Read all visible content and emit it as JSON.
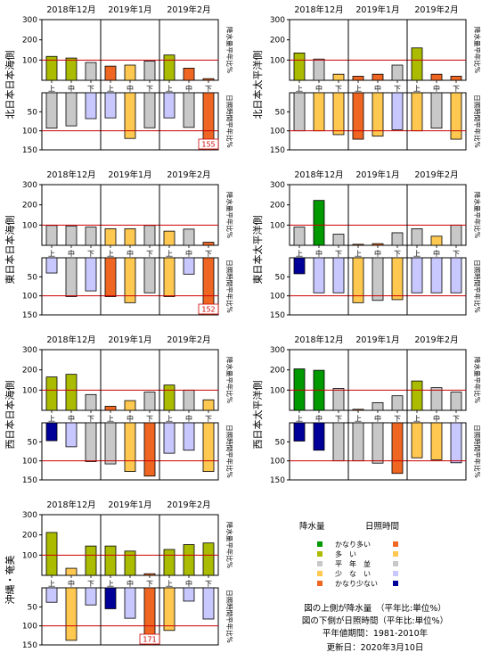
{
  "month_labels": [
    "2018年12月",
    "2019年1月",
    "2019年2月"
  ],
  "dekad_labels": [
    "上",
    "中",
    "下"
  ],
  "precip_side_label": "降水量平年比%",
  "sun_side_label": "日照時間平年比%",
  "precip_ticks": [
    "300",
    "200",
    "100"
  ],
  "sun_ticks": [
    "50",
    "100",
    "150"
  ],
  "colors": {
    "precip": {
      "much_above": "#009900",
      "above": "#aabb00",
      "normal": "#c8c8c8",
      "below": "#ffc850",
      "much_below": "#ee6622"
    },
    "sun": {
      "much_above": "#ee6622",
      "above": "#ffc850",
      "normal": "#c8c8c8",
      "below": "#c8c8ff",
      "much_below": "#000099"
    },
    "reference_line": "#cc0000"
  },
  "chart_data": [
    {
      "type": "bar",
      "region": "北日本日本海側",
      "categories": [
        "12月上",
        "12月中",
        "12月下",
        "1月上",
        "1月中",
        "1月下",
        "2月上",
        "2月中",
        "2月下"
      ],
      "precip": [
        118,
        110,
        88,
        70,
        75,
        95,
        125,
        60,
        8
      ],
      "precip_class": [
        "above",
        "above",
        "normal",
        "much_below",
        "below",
        "normal",
        "above",
        "much_below",
        "much_below"
      ],
      "sunshine": [
        93,
        87,
        68,
        66,
        120,
        92,
        66,
        91,
        155
      ],
      "sunshine_class": [
        "normal",
        "normal",
        "below",
        "below",
        "above",
        "normal",
        "below",
        "normal",
        "much_above"
      ],
      "sun_label": "155",
      "ylim_precip": [
        0,
        300
      ],
      "ylim_sun": [
        0,
        150
      ]
    },
    {
      "type": "bar",
      "region": "北日本太平洋側",
      "categories": [
        "12月上",
        "12月中",
        "12月下",
        "1月上",
        "1月中",
        "1月下",
        "2月上",
        "2月中",
        "2月下"
      ],
      "precip": [
        135,
        105,
        30,
        20,
        30,
        75,
        160,
        30,
        20
      ],
      "precip_class": [
        "above",
        "normal",
        "below",
        "much_below",
        "much_below",
        "normal",
        "above",
        "much_below",
        "much_below"
      ],
      "sunshine": [
        100,
        100,
        110,
        122,
        114,
        97,
        100,
        93,
        122
      ],
      "sunshine_class": [
        "normal",
        "above",
        "above",
        "much_above",
        "above",
        "below",
        "above",
        "normal",
        "above"
      ],
      "sun_label": "",
      "ylim_precip": [
        0,
        300
      ],
      "ylim_sun": [
        0,
        150
      ]
    },
    {
      "type": "bar",
      "region": "東日本日本海側",
      "categories": [
        "12月上",
        "12月中",
        "12月下",
        "1月上",
        "1月中",
        "1月下",
        "2月上",
        "2月中",
        "2月下"
      ],
      "precip": [
        98,
        96,
        90,
        82,
        82,
        98,
        70,
        80,
        15
      ],
      "precip_class": [
        "normal",
        "normal",
        "normal",
        "below",
        "below",
        "normal",
        "below",
        "normal",
        "much_below"
      ],
      "sunshine": [
        40,
        102,
        87,
        102,
        118,
        92,
        102,
        43,
        152
      ],
      "sunshine_class": [
        "below",
        "normal",
        "below",
        "much_above",
        "above",
        "normal",
        "above",
        "below",
        "much_above"
      ],
      "sun_label": "152",
      "ylim_precip": [
        0,
        300
      ],
      "ylim_sun": [
        0,
        150
      ]
    },
    {
      "type": "bar",
      "region": "東日本太平洋側",
      "categories": [
        "12月上",
        "12月中",
        "12月下",
        "1月上",
        "1月中",
        "1月下",
        "2月上",
        "2月中",
        "2月下"
      ],
      "precip": [
        90,
        222,
        55,
        5,
        8,
        62,
        82,
        45,
        100
      ],
      "precip_class": [
        "normal",
        "much_above",
        "normal",
        "much_below",
        "much_below",
        "normal",
        "normal",
        "below",
        "normal"
      ],
      "sunshine": [
        42,
        92,
        92,
        118,
        112,
        110,
        92,
        92,
        92
      ],
      "sunshine_class": [
        "much_below",
        "below",
        "below",
        "above",
        "normal",
        "above",
        "below",
        "below",
        "below"
      ],
      "sun_label": "",
      "ylim_precip": [
        0,
        300
      ],
      "ylim_sun": [
        0,
        150
      ]
    },
    {
      "type": "bar",
      "region": "西日本日本海側",
      "categories": [
        "12月上",
        "12月中",
        "12月下",
        "1月上",
        "1月中",
        "1月下",
        "2月上",
        "2月中",
        "2月下"
      ],
      "precip": [
        165,
        178,
        78,
        20,
        48,
        90,
        125,
        100,
        52
      ],
      "precip_class": [
        "above",
        "above",
        "normal",
        "much_below",
        "below",
        "normal",
        "above",
        "normal",
        "below"
      ],
      "sunshine": [
        47,
        63,
        102,
        108,
        128,
        140,
        80,
        72,
        128
      ],
      "sunshine_class": [
        "much_below",
        "below",
        "normal",
        "normal",
        "above",
        "much_above",
        "below",
        "below",
        "above"
      ],
      "sun_label": "",
      "ylim_precip": [
        0,
        300
      ],
      "ylim_sun": [
        0,
        150
      ]
    },
    {
      "type": "bar",
      "region": "西日本太平洋側",
      "categories": [
        "12月上",
        "12月中",
        "12月下",
        "1月上",
        "1月中",
        "1月下",
        "2月上",
        "2月中",
        "2月下"
      ],
      "precip": [
        205,
        198,
        108,
        5,
        38,
        72,
        145,
        112,
        90
      ],
      "precip_class": [
        "much_above",
        "much_above",
        "normal",
        "much_below",
        "normal",
        "normal",
        "above",
        "normal",
        "normal"
      ],
      "sunshine": [
        48,
        72,
        100,
        100,
        106,
        133,
        92,
        97,
        105
      ],
      "sunshine_class": [
        "much_below",
        "much_below",
        "normal",
        "normal",
        "normal",
        "much_above",
        "above",
        "above",
        "below"
      ],
      "sun_label": "",
      "ylim_precip": [
        0,
        300
      ],
      "ylim_sun": [
        0,
        150
      ]
    },
    {
      "type": "bar",
      "region": "沖縄・奄美",
      "categories": [
        "12月上",
        "12月中",
        "12月下",
        "1月上",
        "1月中",
        "1月下",
        "2月上",
        "2月中",
        "2月下"
      ],
      "precip": [
        212,
        35,
        145,
        145,
        120,
        8,
        128,
        152,
        160
      ],
      "precip_class": [
        "above",
        "below",
        "above",
        "above",
        "above",
        "much_below",
        "above",
        "above",
        "above"
      ],
      "sunshine": [
        38,
        138,
        45,
        55,
        80,
        171,
        112,
        35,
        82
      ],
      "sunshine_class": [
        "below",
        "above",
        "below",
        "much_below",
        "below",
        "much_above",
        "above",
        "below",
        "below"
      ],
      "sun_label": "171",
      "ylim_precip": [
        0,
        300
      ],
      "ylim_sun": [
        0,
        150
      ]
    }
  ],
  "legend": {
    "precip_header": "降水量",
    "sun_header": "日照時間",
    "items": [
      {
        "label": "かなり多い",
        "precip_color": "#009900",
        "sun_color": "#ee6622"
      },
      {
        "label": "多　い",
        "precip_color": "#aabb00",
        "sun_color": "#ffc850"
      },
      {
        "label": "平　年　並",
        "precip_color": "#c8c8c8",
        "sun_color": "#c8c8c8"
      },
      {
        "label": "少　な　い",
        "precip_color": "#ffc850",
        "sun_color": "#c8c8ff"
      },
      {
        "label": "かなり少ない",
        "precip_color": "#ee6622",
        "sun_color": "#000099"
      }
    ],
    "notes": [
      "図の上側が降水量　（平年比:単位%）",
      "図の下側が日照時間（平年比:単位%）",
      "平年値期間：1981-2010年",
      "更新日：2020年3月10日"
    ]
  }
}
